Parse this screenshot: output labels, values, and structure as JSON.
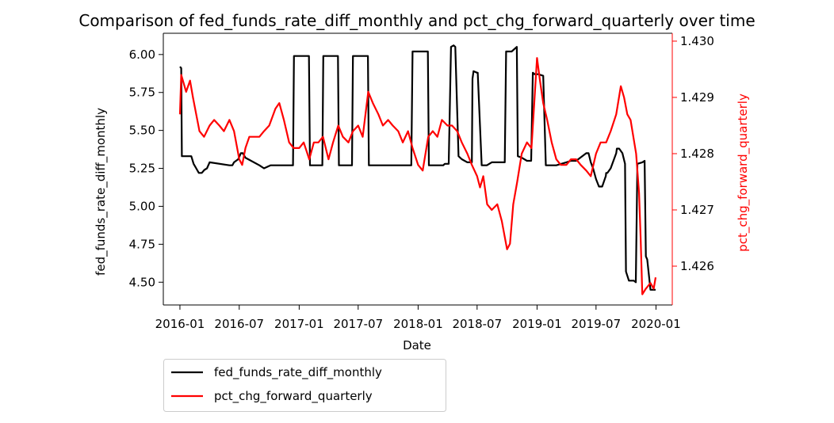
{
  "chart_data": {
    "type": "line",
    "title": "Comparison of fed_funds_rate_diff_monthly and pct_chg_forward_quarterly over time",
    "xlabel": "Date",
    "ylabel_left": "fed_funds_rate_diff_monthly",
    "ylabel_right": "pct_chg_forward_quarterly",
    "x_ticks": [
      "2016-01",
      "2016-07",
      "2017-01",
      "2017-07",
      "2018-01",
      "2018-07",
      "2019-01",
      "2019-07",
      "2020-01"
    ],
    "ylim_left": [
      4.35,
      6.14
    ],
    "ylim_right": [
      1.42531,
      1.43014
    ],
    "y_ticks_left": [
      "4.50",
      "4.75",
      "5.00",
      "5.25",
      "5.50",
      "5.75",
      "6.00"
    ],
    "y_ticks_right": [
      "1.426",
      "1.427",
      "1.428",
      "1.429",
      "1.430"
    ],
    "legend": {
      "placement": "below-left",
      "entries": [
        "fed_funds_rate_diff_monthly",
        "pct_chg_forward_quarterly"
      ]
    },
    "colors": {
      "left_series": "#000000",
      "right_series": "#ff0000",
      "right_axis": "#ff0000"
    },
    "series": [
      {
        "name": "fed_funds_rate_diff_monthly",
        "axis": "left",
        "x": [
          "2016-01-01",
          "2016-01-05",
          "2016-01-07",
          "2016-01-31",
          "2016-02-05",
          "2016-02-12",
          "2016-02-20",
          "2016-02-28",
          "2016-03-08",
          "2016-03-16",
          "2016-03-24",
          "2016-04-01",
          "2016-06-01",
          "2016-06-10",
          "2016-06-15",
          "2016-06-28",
          "2016-07-06",
          "2016-07-12",
          "2016-07-20",
          "2016-09-01",
          "2016-09-15",
          "2016-10-05",
          "2016-10-20",
          "2016-12-13",
          "2016-12-16",
          "2017-01-15",
          "2017-01-31",
          "2017-02-03",
          "2017-03-13",
          "2017-03-16",
          "2017-04-15",
          "2017-04-30",
          "2017-05-03",
          "2017-06-12",
          "2017-06-15",
          "2017-07-15",
          "2017-07-31",
          "2017-08-03",
          "2017-12-11",
          "2017-12-15",
          "2018-01-15",
          "2018-01-31",
          "2018-02-03",
          "2018-03-19",
          "2018-03-24",
          "2018-04-05",
          "2018-04-12",
          "2018-04-20",
          "2018-04-25",
          "2018-05-05",
          "2018-05-15",
          "2018-06-01",
          "2018-06-15",
          "2018-06-17",
          "2018-06-20",
          "2018-07-01",
          "2018-07-03",
          "2018-07-15",
          "2018-07-31",
          "2018-08-15",
          "2018-09-01",
          "2018-09-24",
          "2018-09-28",
          "2018-10-15",
          "2018-10-31",
          "2018-11-03",
          "2018-11-15",
          "2018-12-01",
          "2018-12-10",
          "2018-12-14",
          "2018-12-19",
          "2018-12-25",
          "2019-01-05",
          "2019-01-20",
          "2019-01-28",
          "2019-02-02",
          "2019-03-01",
          "2019-04-01",
          "2019-04-15",
          "2019-05-01",
          "2019-06-01",
          "2019-06-08",
          "2019-06-15",
          "2019-06-22",
          "2019-07-01",
          "2019-07-10",
          "2019-07-20",
          "2019-07-31",
          "2019-08-01",
          "2019-08-05",
          "2019-08-15",
          "2019-09-01",
          "2019-09-03",
          "2019-09-10",
          "2019-09-20",
          "2019-09-28",
          "2019-10-01",
          "2019-10-10",
          "2019-10-20",
          "2019-10-25",
          "2019-10-31",
          "2019-11-05",
          "2019-11-20",
          "2019-11-27",
          "2019-12-01",
          "2019-12-05",
          "2019-12-15",
          "2019-12-25",
          "2019-12-31"
        ],
        "values": [
          5.92,
          5.91,
          5.33,
          5.33,
          5.33,
          5.28,
          5.25,
          5.22,
          5.22,
          5.24,
          5.25,
          5.29,
          5.27,
          5.27,
          5.29,
          5.31,
          5.35,
          5.35,
          5.32,
          5.27,
          5.25,
          5.27,
          5.27,
          5.27,
          5.99,
          5.99,
          5.99,
          5.27,
          5.27,
          5.99,
          5.99,
          5.99,
          5.27,
          5.27,
          5.99,
          5.99,
          5.99,
          5.27,
          5.27,
          6.02,
          6.02,
          6.02,
          5.27,
          5.27,
          5.28,
          5.28,
          6.05,
          6.06,
          6.05,
          5.33,
          5.31,
          5.29,
          5.29,
          5.84,
          5.89,
          5.88,
          5.88,
          5.27,
          5.27,
          5.29,
          5.29,
          5.29,
          6.02,
          6.02,
          6.05,
          5.33,
          5.32,
          5.3,
          5.3,
          5.3,
          5.88,
          5.87,
          5.87,
          5.86,
          5.27,
          5.27,
          5.27,
          5.29,
          5.3,
          5.3,
          5.35,
          5.35,
          5.29,
          5.25,
          5.18,
          5.13,
          5.13,
          5.2,
          5.22,
          5.22,
          5.25,
          5.35,
          5.38,
          5.38,
          5.35,
          5.28,
          4.57,
          4.51,
          4.51,
          4.51,
          4.5,
          5.28,
          5.29,
          5.3,
          4.67,
          4.65,
          4.45,
          4.45,
          4.45
        ]
      },
      {
        "name": "pct_chg_forward_quarterly",
        "axis": "right",
        "x": [
          "2016-01-01",
          "2016-01-05",
          "2016-01-10",
          "2016-01-20",
          "2016-02-01",
          "2016-02-10",
          "2016-02-20",
          "2016-03-01",
          "2016-03-15",
          "2016-04-01",
          "2016-04-15",
          "2016-05-01",
          "2016-05-15",
          "2016-06-01",
          "2016-06-15",
          "2016-07-01",
          "2016-07-10",
          "2016-07-20",
          "2016-08-01",
          "2016-08-15",
          "2016-09-01",
          "2016-09-15",
          "2016-10-01",
          "2016-10-20",
          "2016-11-01",
          "2016-11-15",
          "2016-12-01",
          "2016-12-15",
          "2017-01-01",
          "2017-01-15",
          "2017-02-01",
          "2017-02-15",
          "2017-03-01",
          "2017-03-15",
          "2017-04-01",
          "2017-04-15",
          "2017-05-01",
          "2017-05-15",
          "2017-06-01",
          "2017-06-15",
          "2017-07-01",
          "2017-07-15",
          "2017-08-01",
          "2017-08-15",
          "2017-09-01",
          "2017-09-15",
          "2017-10-01",
          "2017-10-15",
          "2017-11-01",
          "2017-11-15",
          "2017-12-01",
          "2017-12-15",
          "2018-01-01",
          "2018-01-15",
          "2018-02-01",
          "2018-02-15",
          "2018-03-01",
          "2018-03-15",
          "2018-04-01",
          "2018-04-15",
          "2018-05-01",
          "2018-05-15",
          "2018-06-01",
          "2018-06-15",
          "2018-07-01",
          "2018-07-10",
          "2018-07-20",
          "2018-08-01",
          "2018-08-15",
          "2018-09-01",
          "2018-09-15",
          "2018-10-01",
          "2018-10-10",
          "2018-10-20",
          "2018-11-01",
          "2018-11-15",
          "2018-12-01",
          "2018-12-15",
          "2019-01-01",
          "2019-01-10",
          "2019-01-20",
          "2019-02-01",
          "2019-02-15",
          "2019-03-01",
          "2019-03-15",
          "2019-04-01",
          "2019-04-15",
          "2019-05-01",
          "2019-05-15",
          "2019-06-01",
          "2019-06-15",
          "2019-07-01",
          "2019-07-15",
          "2019-08-01",
          "2019-08-15",
          "2019-09-01",
          "2019-09-15",
          "2019-09-25",
          "2019-10-05",
          "2019-10-15",
          "2019-11-01",
          "2019-11-10",
          "2019-11-15",
          "2019-11-20",
          "2019-12-01",
          "2019-12-15",
          "2019-12-25",
          "2019-12-31"
        ],
        "values": [
          1.4287,
          1.4294,
          1.4293,
          1.4291,
          1.4293,
          1.429,
          1.4287,
          1.4284,
          1.4283,
          1.4285,
          1.4286,
          1.4285,
          1.4284,
          1.4286,
          1.4284,
          1.4279,
          1.4278,
          1.4281,
          1.4283,
          1.4283,
          1.4283,
          1.4284,
          1.4285,
          1.4288,
          1.4289,
          1.4286,
          1.4282,
          1.4281,
          1.4281,
          1.4282,
          1.4279,
          1.4282,
          1.4282,
          1.4283,
          1.4279,
          1.4282,
          1.4285,
          1.4283,
          1.4282,
          1.4284,
          1.4285,
          1.4283,
          1.4291,
          1.4289,
          1.4287,
          1.4285,
          1.4286,
          1.4285,
          1.4284,
          1.4282,
          1.4284,
          1.4281,
          1.4278,
          1.4277,
          1.4283,
          1.4284,
          1.4283,
          1.4286,
          1.4285,
          1.4285,
          1.4284,
          1.4282,
          1.428,
          1.4278,
          1.4276,
          1.4274,
          1.4276,
          1.4271,
          1.427,
          1.4271,
          1.4268,
          1.4263,
          1.4264,
          1.4271,
          1.4275,
          1.428,
          1.4282,
          1.4281,
          1.4297,
          1.4293,
          1.4289,
          1.4286,
          1.4282,
          1.4279,
          1.4278,
          1.4278,
          1.4279,
          1.4279,
          1.4278,
          1.4277,
          1.4276,
          1.428,
          1.4282,
          1.4282,
          1.4284,
          1.4287,
          1.4292,
          1.429,
          1.4287,
          1.4286,
          1.428,
          1.4273,
          1.4265,
          1.4255,
          1.4256,
          1.4257,
          1.4256,
          1.4258
        ]
      }
    ]
  }
}
